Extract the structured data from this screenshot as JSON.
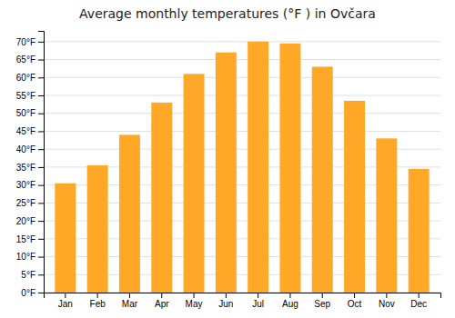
{
  "chart_data": {
    "type": "bar",
    "title": "Average monthly temperatures (°F ) in Ovčara",
    "categories": [
      "Jan",
      "Feb",
      "Mar",
      "Apr",
      "May",
      "Jun",
      "Jul",
      "Aug",
      "Sep",
      "Oct",
      "Nov",
      "Dec"
    ],
    "values": [
      30.5,
      35.5,
      44.0,
      53.0,
      61.0,
      67.0,
      70.0,
      69.5,
      63.0,
      53.5,
      43.0,
      34.5
    ],
    "color": "#FFA726",
    "ylim": [
      0,
      73
    ],
    "yticks": [
      {
        "value": 0,
        "label": "0°F"
      },
      {
        "value": 5,
        "label": "5°F"
      },
      {
        "value": 10,
        "label": "10°F"
      },
      {
        "value": 15,
        "label": "15°F"
      },
      {
        "value": 20,
        "label": "20°F"
      },
      {
        "value": 25,
        "label": "25°F"
      },
      {
        "value": 30,
        "label": "30°F"
      },
      {
        "value": 35,
        "label": "35°F"
      },
      {
        "value": 40,
        "label": "40°F"
      },
      {
        "value": 45,
        "label": "45°F"
      },
      {
        "value": 50,
        "label": "50°F"
      },
      {
        "value": 55,
        "label": "55°F"
      },
      {
        "value": 60,
        "label": "60°F"
      },
      {
        "value": 65,
        "label": "65°F"
      },
      {
        "value": 70,
        "label": "70°F"
      }
    ],
    "grid": true
  }
}
